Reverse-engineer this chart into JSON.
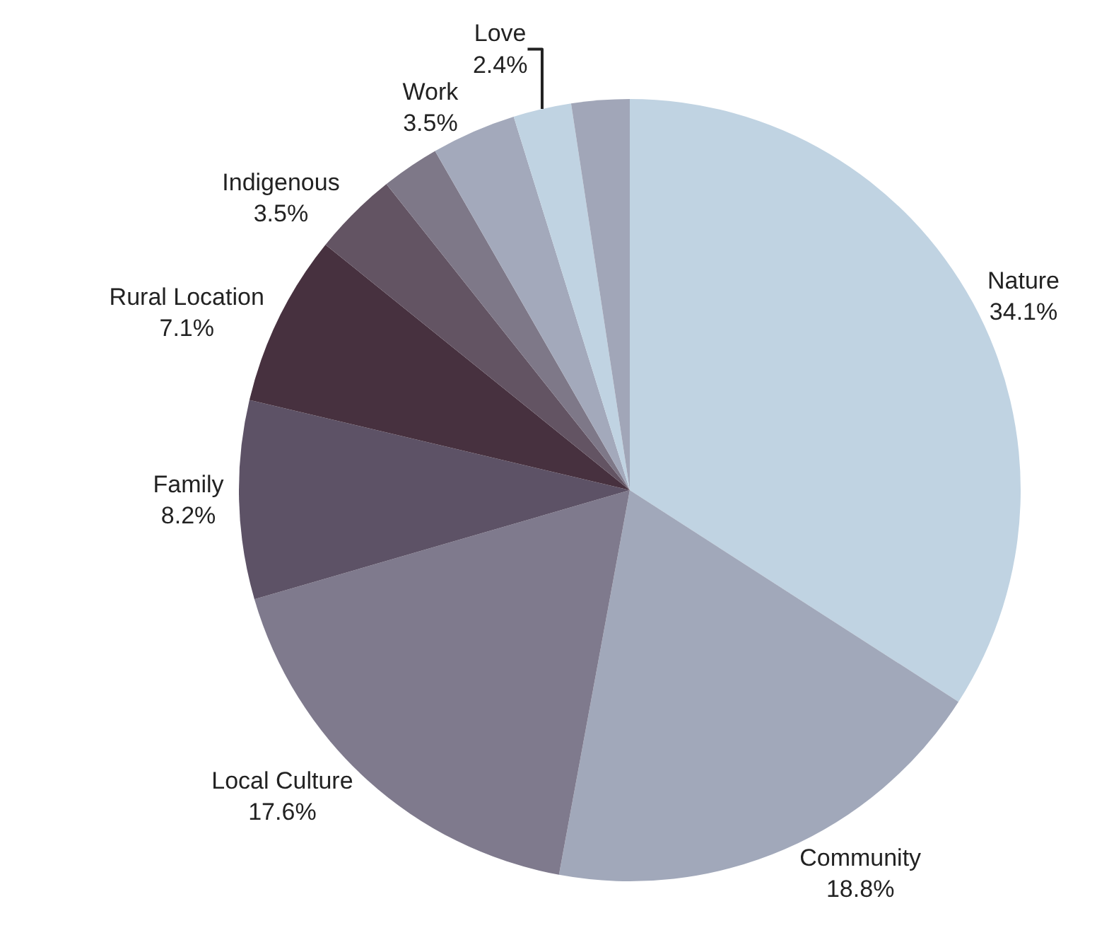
{
  "chart_data": {
    "type": "pie",
    "categories": [
      "Nature",
      "Community",
      "Local Culture",
      "Family",
      "Rural Location",
      "Indigenous",
      null,
      "Work",
      "Love",
      null
    ],
    "values": [
      34.1,
      18.8,
      17.6,
      8.2,
      7.1,
      3.5,
      2.4,
      3.5,
      2.4,
      2.4
    ],
    "value_labels": [
      "34.1%",
      "18.8%",
      "17.6%",
      "8.2%",
      "7.1%",
      "3.5%",
      null,
      "3.5%",
      "2.4%",
      null
    ],
    "colors": [
      "#c0d3e2",
      "#a1a8ba",
      "#7f7a8d",
      "#5d5266",
      "#47313f",
      "#635463",
      "#7e7888",
      "#a3a9bb",
      "#c0d3e2",
      "#a1a6b8"
    ],
    "legend": false
  }
}
